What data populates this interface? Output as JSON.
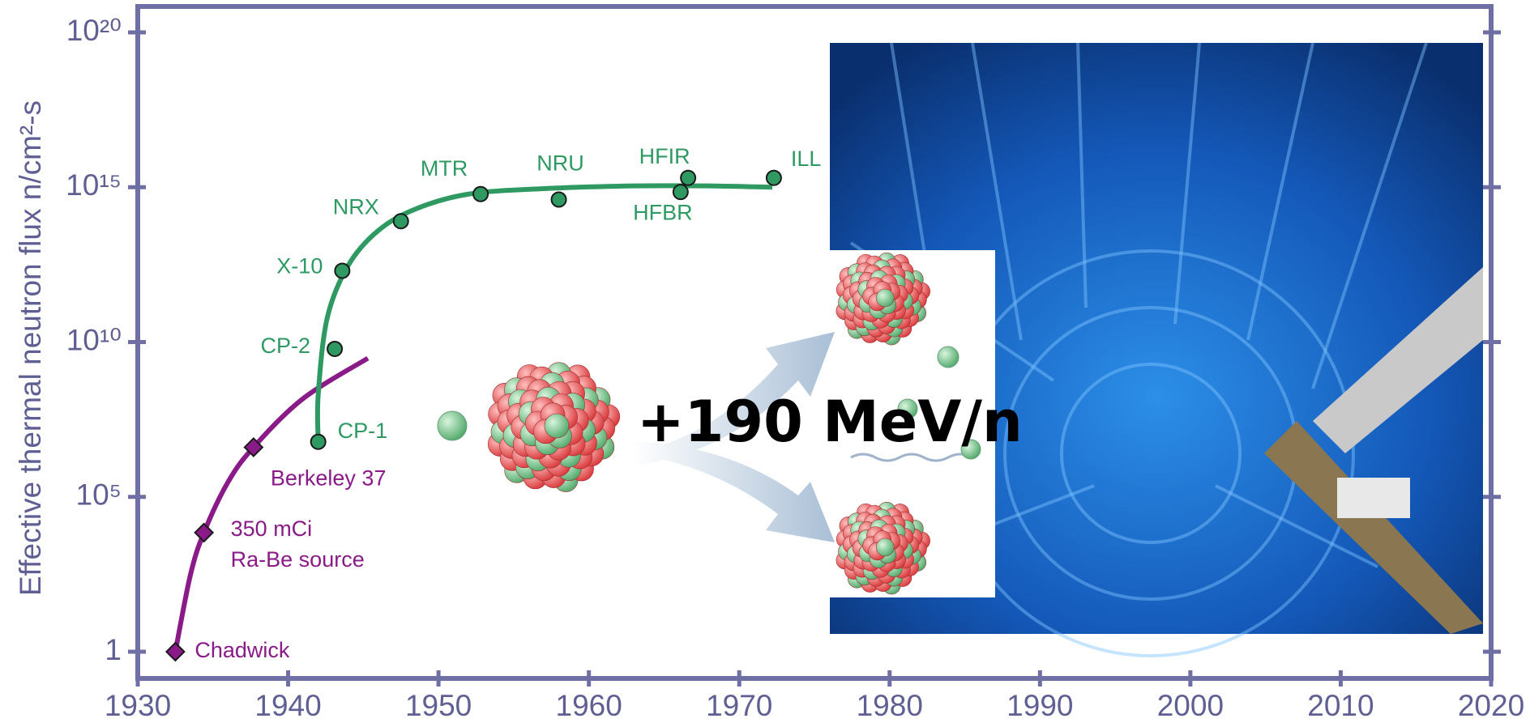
{
  "chart_data": {
    "type": "scatter",
    "ylabel": "Effective thermal neutron flux n/cm²-s",
    "log_y": true,
    "xlim": [
      1930,
      2020
    ],
    "xticks": [
      1930,
      1940,
      1950,
      1960,
      1970,
      1980,
      1990,
      2000,
      2010,
      2020
    ],
    "ylim": [
      1,
      1e+20
    ],
    "yticks": [
      {
        "value": 1,
        "label": "1"
      },
      {
        "value": 100000,
        "label": "10⁵"
      },
      {
        "value": 10000000000,
        "label": "10¹⁰"
      },
      {
        "value": 1000000000000000.0,
        "label": "10¹⁵"
      },
      {
        "value": 1e+20,
        "label": "10²⁰"
      }
    ],
    "annotation": "+190 MeV/n",
    "series": [
      {
        "color": "#8a1a88",
        "marker": "diamond",
        "x": [
          1932.5,
          1934.4,
          1937.7
        ],
        "values": [
          1,
          7000,
          4000000
        ],
        "labels": [
          "Chadwick",
          [
            "350 mCi",
            "Ra-Be source"
          ],
          "Berkeley 37"
        ],
        "trend": {
          "x": [
            1932.5,
            1933.5,
            1934.4,
            1936,
            1937.7,
            1941,
            1945.3
          ],
          "values": [
            1,
            300,
            7000,
            300000,
            4000000,
            150000000,
            3000000000
          ]
        }
      },
      {
        "color": "#2e9a62",
        "marker": "circle",
        "x": [
          1942,
          1943.1,
          1943.6,
          1947.5,
          1952.8,
          1958,
          1966.1,
          1966.6,
          1972.3
        ],
        "values": [
          6000000,
          6000000000,
          2000000000000,
          80000000000000,
          600000000000000,
          400000000000000,
          700000000000000,
          2000000000000000,
          2000000000000000
        ],
        "labels": [
          "CP-1",
          "CP-2",
          "X-10",
          "NRX",
          "MTR",
          "NRU",
          "HFBR",
          "HFIR",
          "ILL"
        ],
        "trend": {
          "x": [
            1942,
            1942,
            1942.6,
            1944,
            1946,
            1948.5,
            1952,
            1957,
            1963,
            1968,
            1972.2
          ],
          "values": [
            6000000,
            200000000,
            60000000000,
            3000000000000,
            40000000000000,
            200000000000000,
            600000000000000,
            900000000000000,
            1100000000000000,
            1100000000000000,
            1000000000000000
          ]
        }
      }
    ]
  }
}
